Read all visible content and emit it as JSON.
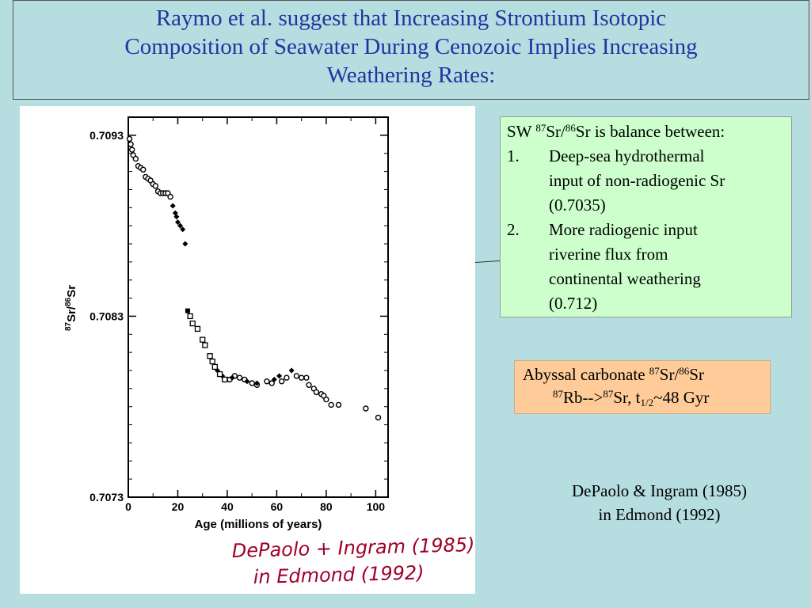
{
  "title": {
    "line1": "Raymo et al. suggest that Increasing Strontium Isotopic",
    "line2": "Composition of Seawater During Cenozoic Implies Increasing",
    "line3": "Weathering Rates:"
  },
  "info_box": {
    "sw": "SW ",
    "sup87": "87",
    "sr_slash": "Sr/",
    "sup86": "86",
    "rest": "Sr is balance between:",
    "items": [
      {
        "num": "1.",
        "lines": [
          "Deep-sea hydrothermal",
          "input of non-radiogenic Sr",
          "(0.7035)"
        ]
      },
      {
        "num": "2.",
        "lines": [
          "More radiogenic input",
          "riverine flux from",
          "continental weathering",
          "(0.712)"
        ]
      }
    ]
  },
  "carbonate_box": {
    "l1_text": "Abyssal carbonate ",
    "l1_sup87": "87",
    "l1_sr": "Sr/",
    "l1_sup86": "86",
    "l1_sr2": "Sr",
    "l2_sup87a": "87",
    "l2_rb": "Rb-->",
    "l2_sup87b": "87",
    "l2_sr": "Sr, t",
    "l2_sub": "1/2",
    "l2_end": "~48 Gyr"
  },
  "citation": {
    "line1": "DePaolo & Ingram (1985)",
    "line2": "in Edmond (1992)"
  },
  "handwritten": {
    "line1": "DePaolo + Ingram (1985)",
    "line2": "in Edmond (1992)",
    "color": "#a0002a"
  },
  "colors": {
    "title": "#2433a0",
    "background": "#b6dde0",
    "info_box": "#ccffcc",
    "carbonate_box": "#ffcc99"
  },
  "chart_data": {
    "type": "scatter",
    "xlabel": "Age (millions of years)",
    "ylabel_sup87": "87",
    "ylabel_mid": "Sr/",
    "ylabel_sup86": "86",
    "ylabel_end": "Sr",
    "xlim": [
      0,
      105
    ],
    "ylim": [
      0.7073,
      0.7094
    ],
    "x_ticks": [
      0,
      20,
      40,
      60,
      80,
      100
    ],
    "y_ticks": [
      {
        "value": 0.7073,
        "label": "0.7073"
      },
      {
        "value": 0.7083,
        "label": "0.7083"
      },
      {
        "value": 0.7093,
        "label": "0.7093"
      }
    ],
    "series": [
      {
        "marker": "open-circle",
        "points": [
          [
            0.5,
            0.70928
          ],
          [
            1,
            0.70925
          ],
          [
            1.5,
            0.70922
          ],
          [
            2,
            0.70919
          ],
          [
            3,
            0.70917
          ],
          [
            4,
            0.70913
          ],
          [
            5,
            0.70912
          ],
          [
            6,
            0.70911
          ],
          [
            7,
            0.70907
          ],
          [
            8,
            0.70906
          ],
          [
            9,
            0.70905
          ],
          [
            10,
            0.70903
          ],
          [
            11,
            0.70902
          ],
          [
            12,
            0.70899
          ],
          [
            13,
            0.70898
          ],
          [
            14,
            0.70898
          ],
          [
            15,
            0.70898
          ],
          [
            16,
            0.70898
          ],
          [
            17,
            0.70896
          ],
          [
            39,
            0.70795
          ],
          [
            41,
            0.70795
          ],
          [
            43,
            0.70797
          ],
          [
            45,
            0.70796
          ],
          [
            47,
            0.70795
          ],
          [
            50,
            0.70793
          ],
          [
            52,
            0.70792
          ],
          [
            56,
            0.70794
          ],
          [
            58,
            0.70793
          ],
          [
            62,
            0.70794
          ],
          [
            64,
            0.70796
          ],
          [
            68,
            0.70797
          ],
          [
            70,
            0.70796
          ],
          [
            72,
            0.70796
          ],
          [
            73,
            0.70792
          ],
          [
            75,
            0.7079
          ],
          [
            76,
            0.70788
          ],
          [
            78,
            0.70787
          ],
          [
            79,
            0.70786
          ],
          [
            80,
            0.70784
          ],
          [
            82,
            0.70781
          ],
          [
            85,
            0.70781
          ],
          [
            96,
            0.70779
          ],
          [
            101,
            0.70774
          ]
        ]
      },
      {
        "marker": "filled-diamond",
        "points": [
          [
            18,
            0.70891
          ],
          [
            19,
            0.70887
          ],
          [
            19.5,
            0.70885
          ],
          [
            20,
            0.70882
          ],
          [
            21,
            0.7088
          ],
          [
            22,
            0.70878
          ],
          [
            23,
            0.7087
          ],
          [
            36,
            0.708
          ],
          [
            38,
            0.70797
          ],
          [
            42,
            0.70796
          ],
          [
            48,
            0.70794
          ],
          [
            52,
            0.70793
          ],
          [
            59,
            0.70795
          ],
          [
            61,
            0.70797
          ],
          [
            66,
            0.708
          ]
        ]
      },
      {
        "marker": "filled-square",
        "points": [
          [
            24,
            0.70833
          ]
        ]
      },
      {
        "marker": "open-square",
        "points": [
          [
            25,
            0.7083
          ],
          [
            26,
            0.70826
          ],
          [
            28,
            0.70823
          ],
          [
            30,
            0.70817
          ],
          [
            31,
            0.70814
          ],
          [
            33,
            0.70808
          ],
          [
            34,
            0.70805
          ],
          [
            35,
            0.70802
          ],
          [
            37,
            0.70798
          ],
          [
            39,
            0.70795
          ]
        ]
      }
    ]
  }
}
